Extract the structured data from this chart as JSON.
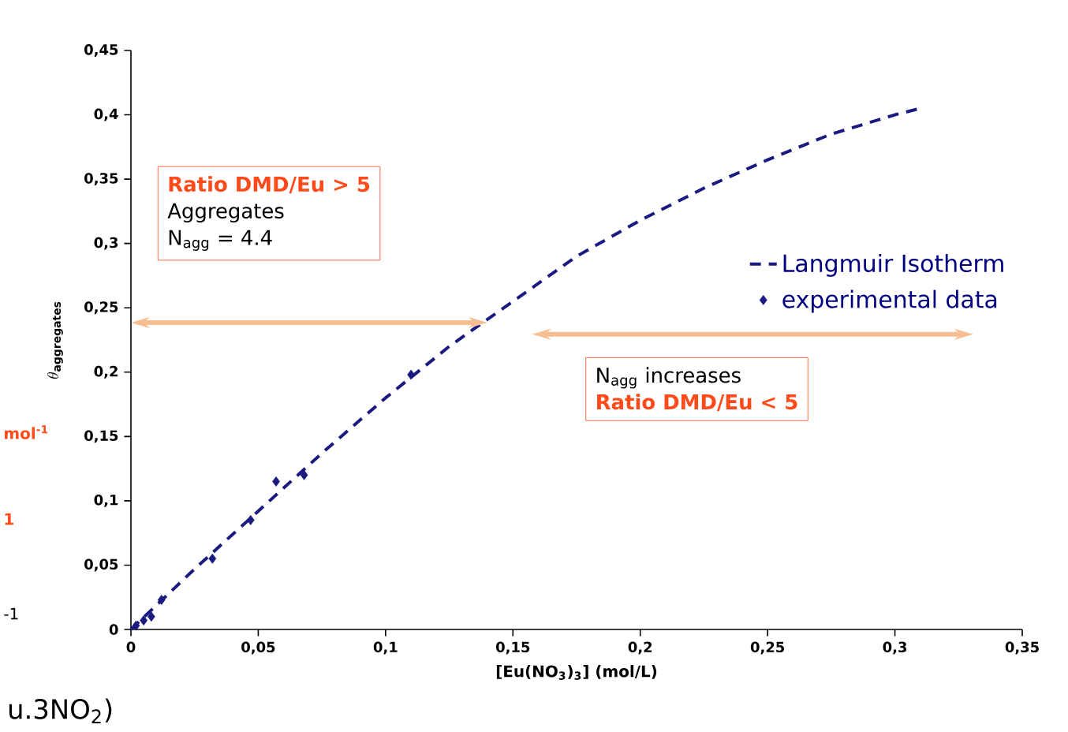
{
  "chart_data": {
    "type": "scatter",
    "xlabel": "[Eu(NO$_{3}$)$_{3}$] (mol/L)",
    "ylabel": "\\theta_{\\mathbf{aggregates}}",
    "xlim": [
      0,
      0.35
    ],
    "ylim": [
      0,
      0.45
    ],
    "xticks": [
      0,
      {
        "value": 0.05,
        "label": "0,05"
      },
      {
        "value": 0.1,
        "label": "0,1"
      },
      {
        "value": 0.15,
        "label": "0,15"
      },
      {
        "value": 0.2,
        "label": "0,2"
      },
      {
        "value": 0.25,
        "label": "0,25"
      },
      {
        "value": 0.3,
        "label": "0,3"
      },
      {
        "value": 0.35,
        "label": "0,35"
      }
    ],
    "yticks": [
      0,
      {
        "value": 0.05,
        "label": "0,05"
      },
      {
        "value": 0.1,
        "label": "0,1"
      },
      {
        "value": 0.15,
        "label": "0,15"
      },
      {
        "value": 0.2,
        "label": "0,2"
      },
      {
        "value": 0.25,
        "label": "0,25"
      },
      {
        "value": 0.3,
        "label": "0,3"
      },
      {
        "value": 0.35,
        "label": "0,35"
      },
      {
        "value": 0.4,
        "label": "0,4"
      },
      {
        "value": 0.45,
        "label": "0,45"
      }
    ],
    "legend": "right",
    "series": [
      {
        "name": "Langmuir Isotherm",
        "type": "line",
        "line_style": "dashed",
        "marker": "none",
        "color": "#1a1a80",
        "x": [
          0,
          0.025,
          0.05,
          0.075,
          0.1,
          0.125,
          0.15,
          0.175,
          0.2,
          0.225,
          0.25,
          0.275,
          0.3,
          0.31
        ],
        "values": [
          0,
          0.047,
          0.092,
          0.137,
          0.18,
          0.22,
          0.255,
          0.29,
          0.318,
          0.343,
          0.365,
          0.385,
          0.4,
          0.405
        ]
      },
      {
        "name": "experimental data",
        "marker": "diamond",
        "color": "#1a1a80",
        "x": [
          0.002,
          0.005,
          0.008,
          0.012,
          0.032,
          0.047,
          0.057,
          0.068,
          0.11
        ],
        "values": [
          0.003,
          0.007,
          0.01,
          0.023,
          0.055,
          0.085,
          0.115,
          0.12,
          0.198
        ]
      }
    ],
    "annotations": [
      "Ratio DMD/Eu > 5",
      "Aggregates",
      "N$_{agg}$ = 4.4",
      "N$_{agg}$ increases",
      "Ratio DMD/Eu < 5",
      "mol$^{-1}$",
      "1",
      "-1",
      "u.3NO$_{2}$)"
    ]
  }
}
